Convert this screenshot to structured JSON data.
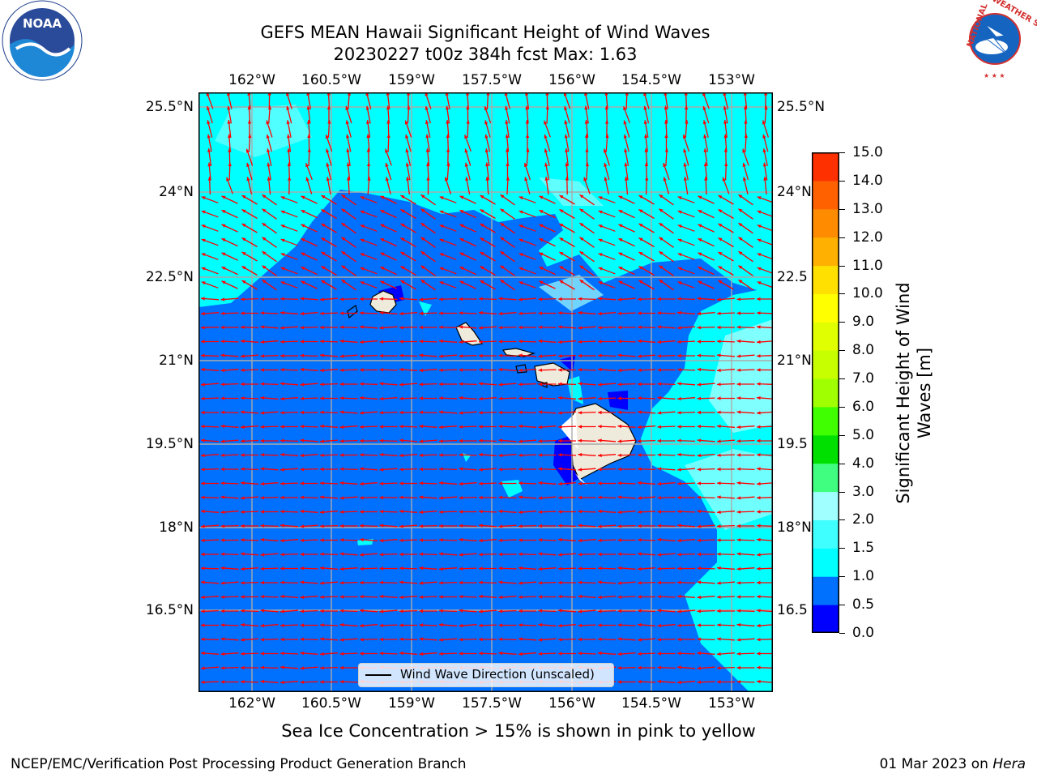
{
  "title": {
    "line1": "GEFS MEAN Hawaii Significant Height of Wind Waves",
    "line2": "20230227 t00z 384h fcst   Max: 1.63"
  },
  "lon_ticks": [
    "162°W",
    "160.5°W",
    "159°W",
    "157.5°W",
    "156°W",
    "154.5°W",
    "153°W"
  ],
  "lat_ticks_left": [
    "25.5°N",
    "24°N",
    "22.5°N",
    "21°N",
    "19.5°N",
    "18°N",
    "16.5°N"
  ],
  "lat_ticks_right": [
    "25.5°N",
    "24°N",
    "22.5",
    "21°N",
    "19.5",
    "18°N",
    "16.5"
  ],
  "colorbar": {
    "label_line1": "Significant Height of Wind",
    "label_line2": "Waves [m]",
    "ticks": [
      "0.0",
      "0.5",
      "1.0",
      "1.5",
      "2.0",
      "3.0",
      "4.0",
      "5.0",
      "6.0",
      "7.0",
      "8.0",
      "9.0",
      "10.0",
      "11.0",
      "12.0",
      "13.0",
      "14.0",
      "15.0"
    ],
    "colors": [
      "#0000ff",
      "#0070ff",
      "#00ffff",
      "#40ffff",
      "#a0ffff",
      "#40ff80",
      "#00e000",
      "#40ff00",
      "#a0ff00",
      "#c8ff00",
      "#e0ff00",
      "#ffff00",
      "#ffe000",
      "#ffb000",
      "#ff8c00",
      "#ff6000",
      "#ff3000",
      "#ff0000"
    ]
  },
  "legend": {
    "label": "Wind Wave Direction (unscaled)"
  },
  "colors": {
    "ocean_low": "#0070ff",
    "ocean_mid": "#00ffff",
    "ocean_pale": "#a0ffff",
    "ocean_deep": "#0000ff",
    "land": "#efebdc",
    "arrows": "#ff0000",
    "grid": "#aaaaaa"
  },
  "caption": "Sea Ice Concentration > 15% is shown in pink to yellow",
  "footer": {
    "left": "NCEP/EMC/Verification Post Processing Product Generation Branch",
    "right_date": "01 Mar 2023 on ",
    "right_system": "Hera"
  },
  "logos": {
    "noaa": "NOAA",
    "nws_left": "NATIONAL",
    "nws_right": "WEATHER SERVICE"
  }
}
